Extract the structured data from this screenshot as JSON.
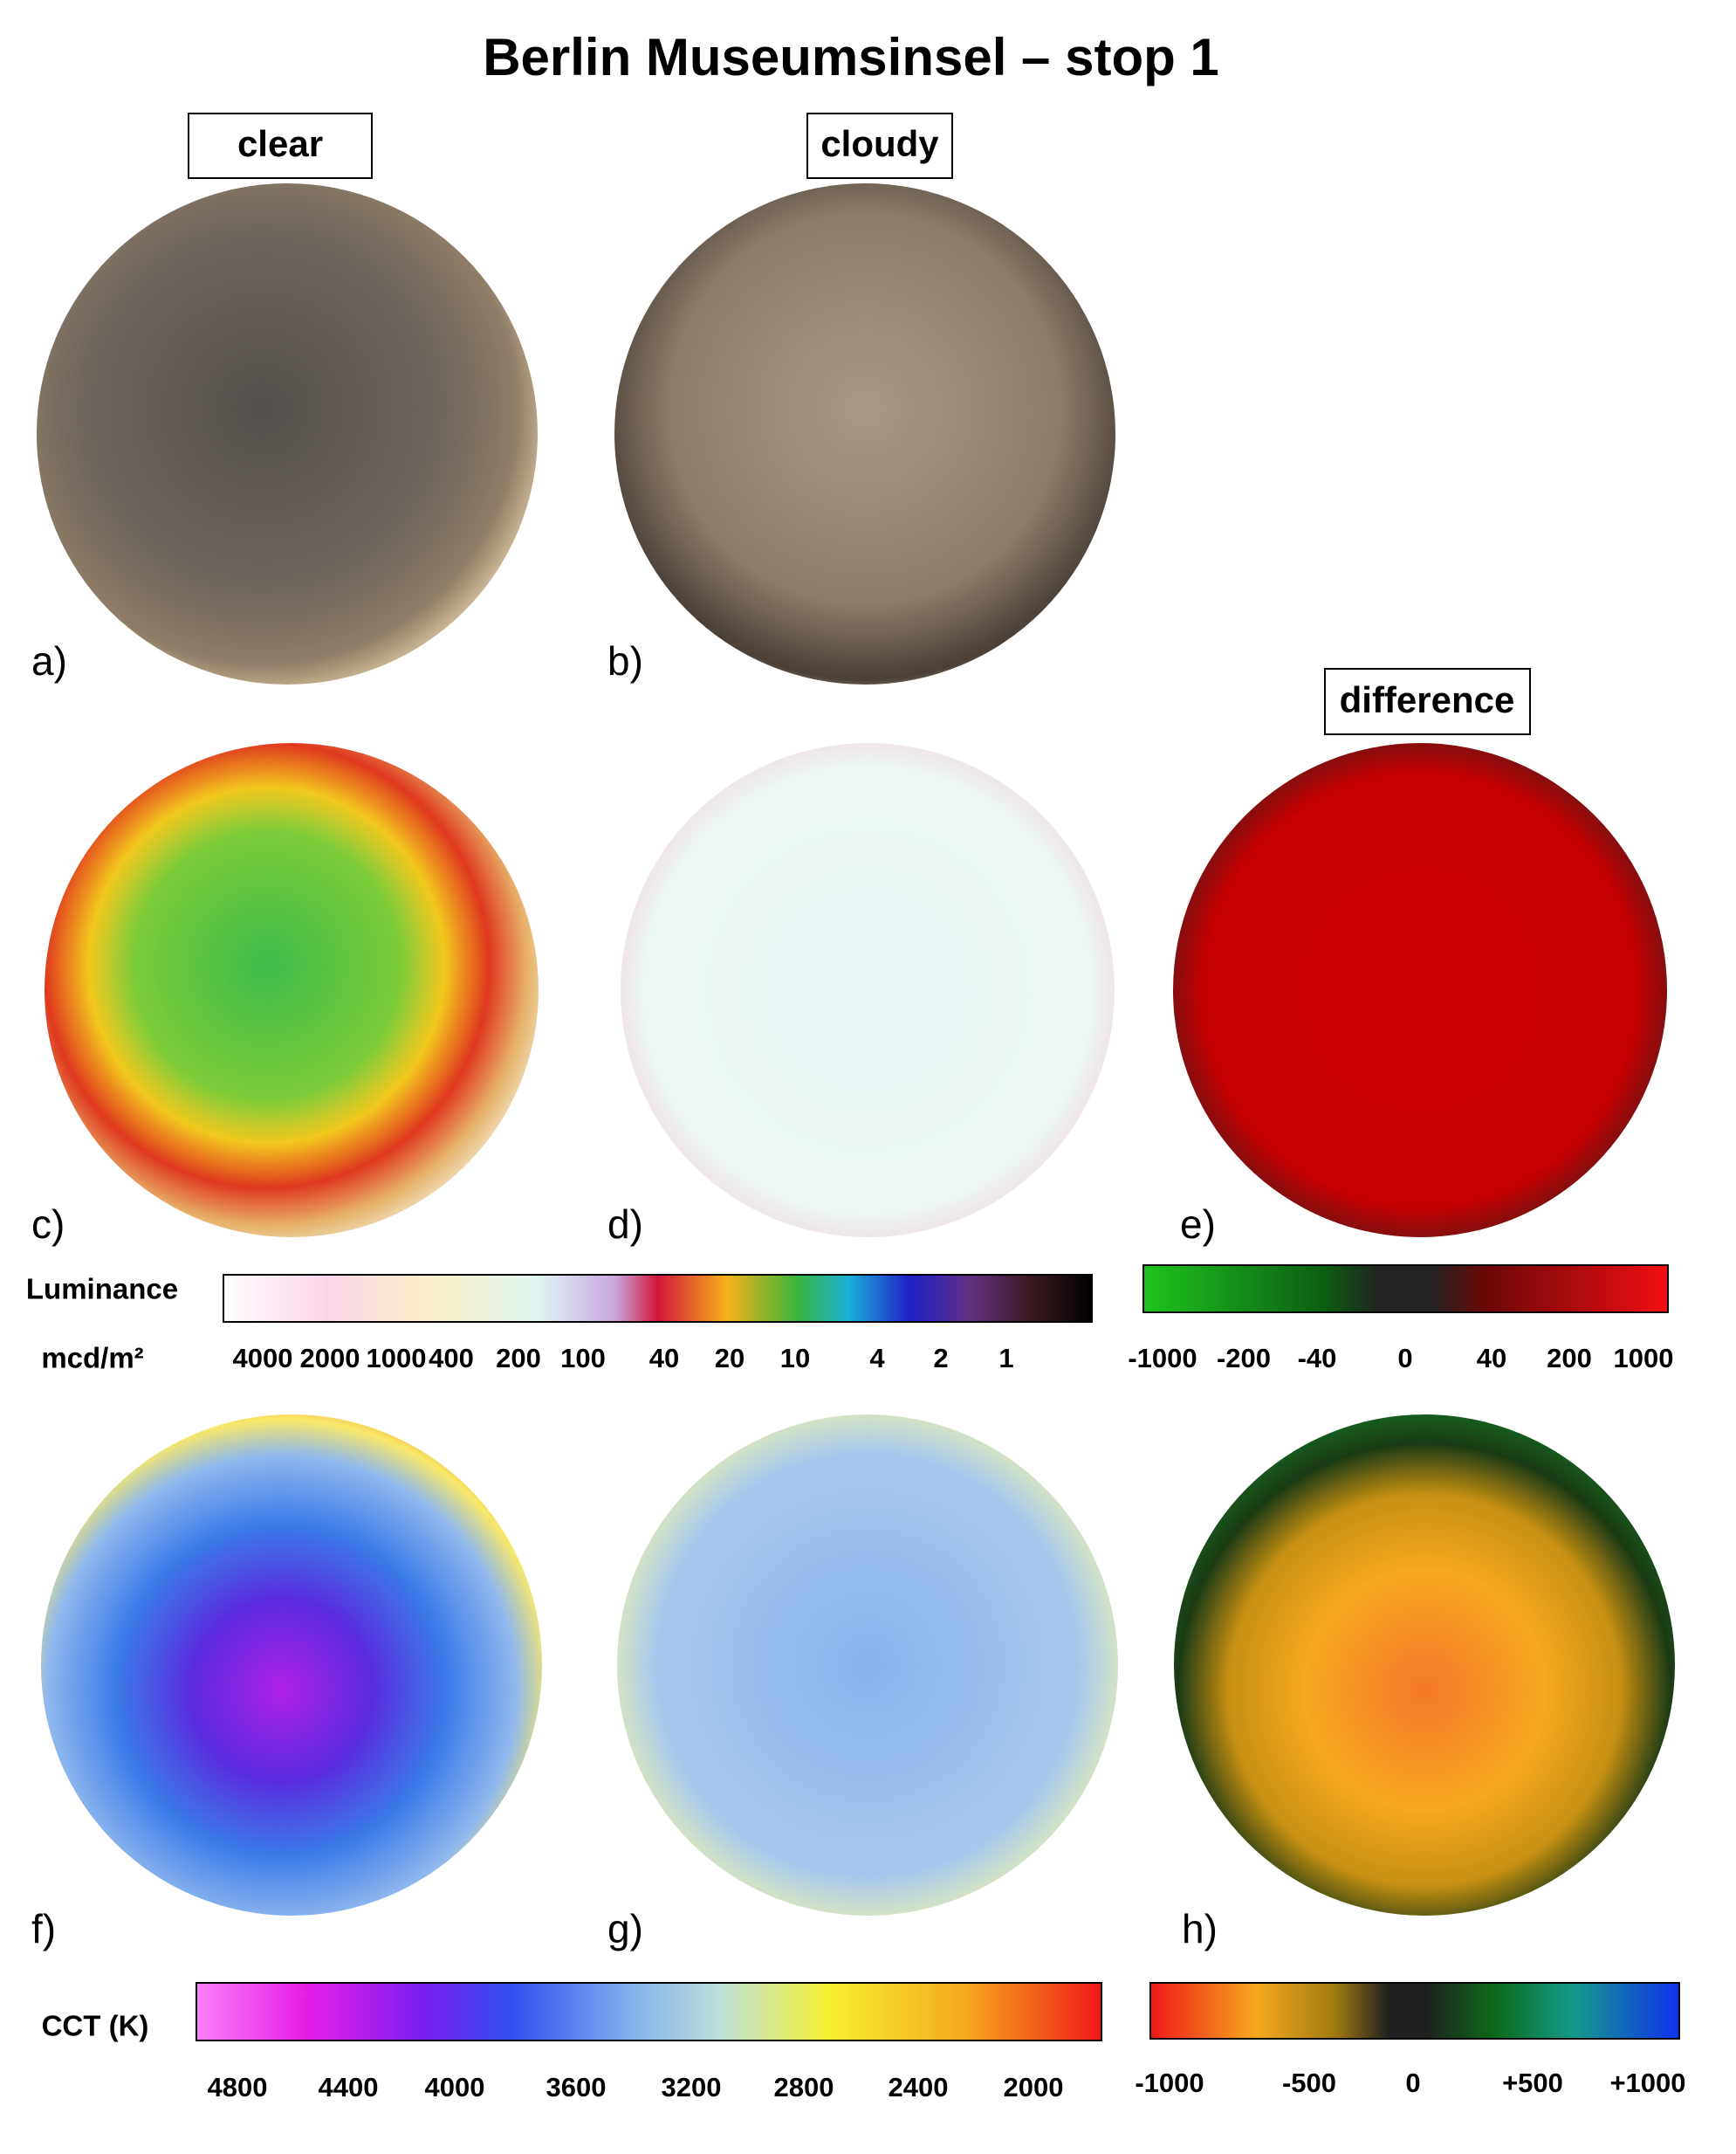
{
  "title": "Berlin Museumsinsel – stop 1",
  "column_headers": [
    "clear",
    "cloudy",
    "difference"
  ],
  "panel_labels": [
    "a)",
    "b)",
    "c)",
    "d)",
    "e)",
    "f)",
    "g)",
    "h)"
  ],
  "luminance_scale": {
    "label": "Luminance",
    "unit": "mcd/m²",
    "ticks": [
      "4000",
      "2000",
      "1000",
      "400",
      "200",
      "100",
      "40",
      "20",
      "10",
      "4",
      "2",
      "1"
    ]
  },
  "luminance_difference_scale": {
    "ticks": [
      "-1000",
      "-200",
      "-40",
      "0",
      "40",
      "200",
      "1000"
    ]
  },
  "cct_scale": {
    "label": "CCT (K)",
    "ticks": [
      "4800",
      "4400",
      "4000",
      "3600",
      "3200",
      "2800",
      "2400",
      "2000"
    ]
  },
  "cct_difference_scale": {
    "ticks": [
      "-1000",
      "-500",
      "0",
      "+500",
      "+1000"
    ]
  }
}
